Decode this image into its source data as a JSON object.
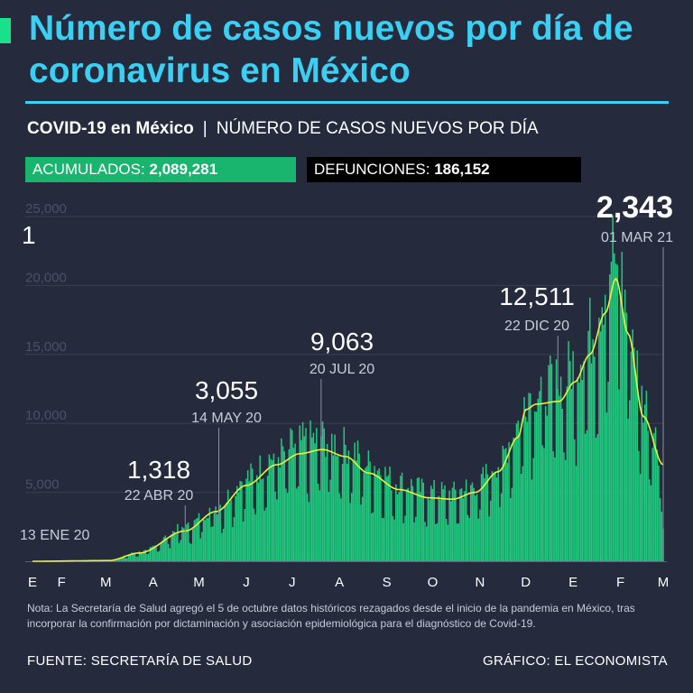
{
  "title": "Número de casos nuevos por día de coronavirus en México",
  "subtitle": {
    "bold": "COVID-19 en México",
    "sep": "|",
    "rest": "NÚMERO DE CASOS NUEVOS POR DÍA"
  },
  "badges": {
    "acumulados_label": "ACUMULADOS: ",
    "acumulados_value": "2,089,281",
    "defunciones_label": "DEFUNCIONES: ",
    "defunciones_value": "186,152"
  },
  "note": "Nota: La Secretaría de Salud agregó el 5 de octubre datos históricos rezagados desde el inicio de la pandemia en México, tras incorporar la confirmación por dictaminación y asociación epidemiológica para el diagnóstico de Covid-19.",
  "footer": {
    "source": "FUENTE: SECRETARÍA DE SALUD",
    "credit": "GRÁFICO: EL ECONOMISTA"
  },
  "colors": {
    "background": "#252a3d",
    "title": "#3ad0f3",
    "bars": "#1fc97e",
    "trend": "#e8f03a",
    "grid": "#3a3f52",
    "axis_text": "#4a5068"
  },
  "chart_data": {
    "type": "bar",
    "title": "Número de casos nuevos por día",
    "ylim": [
      0,
      25000
    ],
    "yticks": [
      {
        "value": 5000,
        "label": "5,000"
      },
      {
        "value": 10000,
        "label": "10,000"
      },
      {
        "value": 15000,
        "label": "15,000"
      },
      {
        "value": 20000,
        "label": "20,000"
      },
      {
        "value": 25000,
        "label": "25,000"
      }
    ],
    "x_start": "13 ENE 20",
    "x_end": "01 MAR 21",
    "month_labels": [
      {
        "label": "E",
        "day": 0
      },
      {
        "label": "F",
        "day": 19
      },
      {
        "label": "M",
        "day": 48
      },
      {
        "label": "A",
        "day": 79
      },
      {
        "label": "M",
        "day": 109
      },
      {
        "label": "J",
        "day": 140
      },
      {
        "label": "J",
        "day": 170
      },
      {
        "label": "A",
        "day": 201
      },
      {
        "label": "S",
        "day": 232
      },
      {
        "label": "O",
        "day": 262
      },
      {
        "label": "N",
        "day": 293
      },
      {
        "label": "D",
        "day": 323
      },
      {
        "label": "E",
        "day": 354
      },
      {
        "label": "F",
        "day": 385
      },
      {
        "label": "M",
        "day": 413
      }
    ],
    "trend_anchors": [
      {
        "day": 0,
        "value": 0
      },
      {
        "day": 50,
        "value": 50
      },
      {
        "day": 70,
        "value": 600
      },
      {
        "day": 100,
        "value": 2200
      },
      {
        "day": 120,
        "value": 3600
      },
      {
        "day": 140,
        "value": 5500
      },
      {
        "day": 160,
        "value": 7000
      },
      {
        "day": 175,
        "value": 7800
      },
      {
        "day": 190,
        "value": 8100
      },
      {
        "day": 205,
        "value": 7600
      },
      {
        "day": 220,
        "value": 6400
      },
      {
        "day": 240,
        "value": 5200
      },
      {
        "day": 260,
        "value": 4600
      },
      {
        "day": 275,
        "value": 4500
      },
      {
        "day": 290,
        "value": 5000
      },
      {
        "day": 305,
        "value": 6500
      },
      {
        "day": 318,
        "value": 9000
      },
      {
        "day": 323,
        "value": 11000
      },
      {
        "day": 330,
        "value": 11400
      },
      {
        "day": 345,
        "value": 11600
      },
      {
        "day": 355,
        "value": 13000
      },
      {
        "day": 365,
        "value": 15000
      },
      {
        "day": 375,
        "value": 18000
      },
      {
        "day": 382,
        "value": 20500
      },
      {
        "day": 390,
        "value": 16500
      },
      {
        "day": 400,
        "value": 10500
      },
      {
        "day": 413,
        "value": 7000
      }
    ],
    "peak_spikes": [
      {
        "day": 381,
        "value": 22339
      },
      {
        "day": 383,
        "value": 21500
      },
      {
        "day": 378,
        "value": 20800
      }
    ],
    "annotations": [
      {
        "value_label": "1",
        "date": "13 ENE 20",
        "day": 0,
        "value": 1
      },
      {
        "value_label": "1,318",
        "date": "22 ABR 20",
        "day": 100,
        "value": 1318
      },
      {
        "value_label": "3,055",
        "date": "14 MAY 20",
        "day": 122,
        "value": 3055
      },
      {
        "value_label": "9,063",
        "date": "20 JUL 20",
        "day": 189,
        "value": 9063
      },
      {
        "value_label": "12,511",
        "date": "22 DIC 20",
        "day": 344,
        "value": 12511
      },
      {
        "value_label": "2,343",
        "date": "01 MAR 21",
        "day": 413,
        "value": 2343
      }
    ]
  }
}
